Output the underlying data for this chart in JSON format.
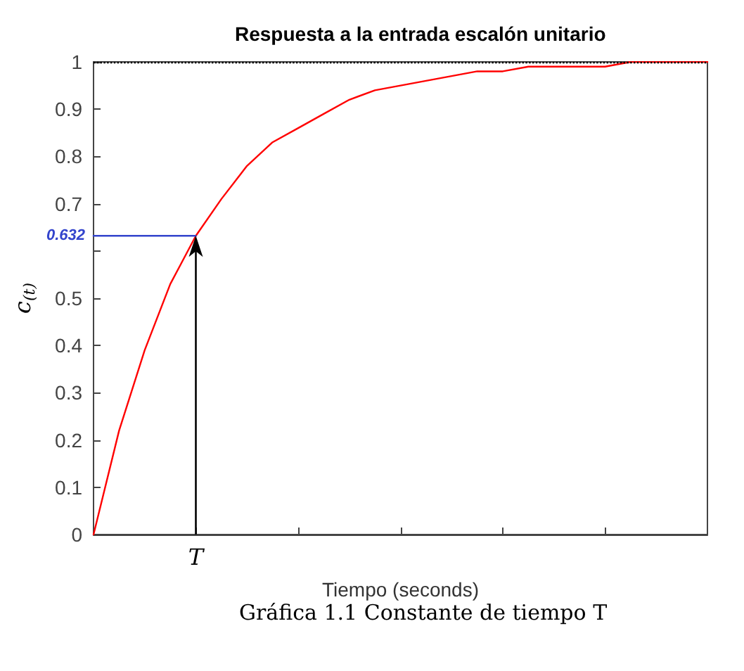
{
  "chart_data": {
    "type": "line",
    "title": "Respuesta a la entrada escalón unitario",
    "xlabel": "Tiempo (seconds)",
    "ylabel": "c$_{(t)}$",
    "categories": [
      null,
      null,
      null,
      null,
      "T",
      null,
      null,
      null,
      null,
      null,
      null,
      null,
      null,
      null,
      null,
      null,
      null,
      null,
      null,
      null,
      null,
      null,
      null,
      null,
      null
    ],
    "series": [
      {
        "color": "#ff0000",
        "values": [
          0,
          0.22,
          0.39,
          0.53,
          0.632,
          0.71,
          0.78,
          0.83,
          0.86,
          0.89,
          0.92,
          0.94,
          0.95,
          0.96,
          0.97,
          0.98,
          0.98,
          0.99,
          0.99,
          0.99,
          0.99,
          1.0,
          1.0,
          1.0,
          1.0
        ]
      },
      {
        "color": "#3344cc",
        "values": [
          0.632,
          0.632,
          0.632,
          0.632,
          0.632,
          null,
          null,
          null,
          null,
          null,
          null,
          null,
          null,
          null,
          null,
          null,
          null,
          null,
          null,
          null,
          null,
          null,
          null,
          null,
          null
        ]
      }
    ],
    "ylim": [
      0,
      1
    ],
    "yticks": [
      0,
      0.1,
      0.2,
      0.3,
      0.4,
      0.5,
      {
        "value": 0.6,
        "label": null
      },
      0.7,
      0.8,
      0.9,
      1
    ],
    "ref_lines": [
      {
        "axis": "y",
        "value": 1,
        "color": "#000000",
        "line_style": "dotted"
      }
    ],
    "annotations": [
      "0.632",
      "Gráfica 1.1 Constante de tiempo T"
    ],
    "grid": false,
    "marker": "none",
    "line_style": "solid"
  }
}
